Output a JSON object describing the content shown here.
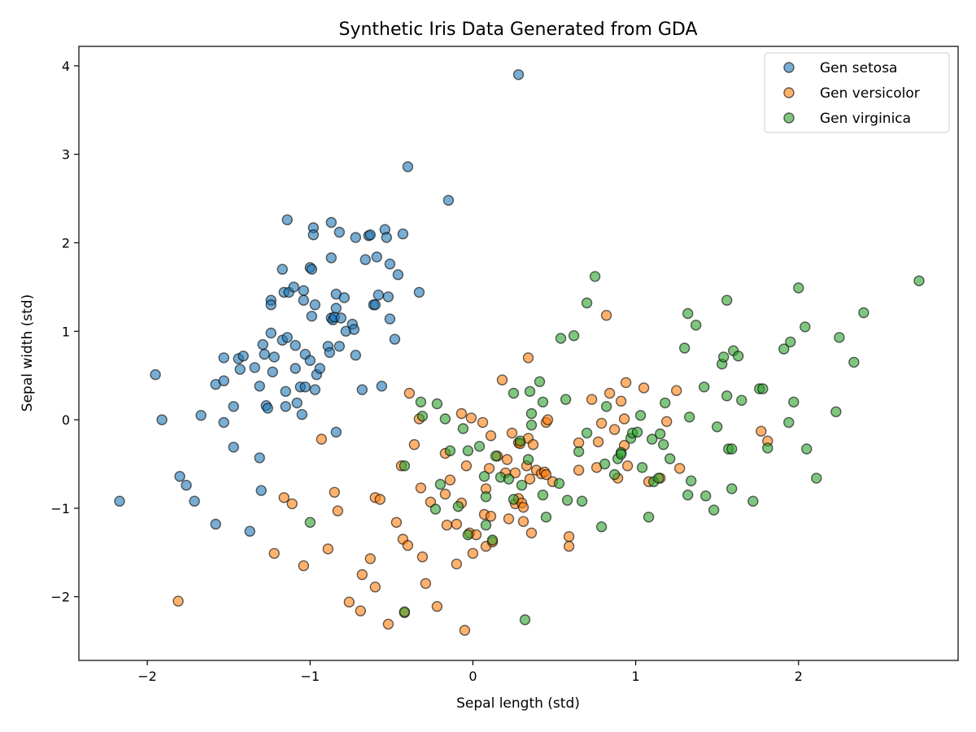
{
  "chart_data": {
    "type": "scatter",
    "title": "Synthetic Iris Data Generated from GDA",
    "xlabel": "Sepal length (std)",
    "ylabel": "Sepal width (std)",
    "xlim": [
      -2.42,
      2.98
    ],
    "ylim": [
      -2.72,
      4.22
    ],
    "xticks": [
      -2,
      -1,
      0,
      1,
      2
    ],
    "xtick_labels": [
      "−2",
      "−1",
      "0",
      "1",
      "2"
    ],
    "yticks": [
      -2,
      -1,
      0,
      1,
      2,
      3,
      4
    ],
    "ytick_labels": [
      "−2",
      "−1",
      "0",
      "1",
      "2",
      "3",
      "4"
    ],
    "grid": false,
    "legend_position": "top-right",
    "series": [
      {
        "name": "Gen setosa",
        "color": "#1f77b4",
        "points": [
          [
            -2.17,
            -0.92
          ],
          [
            -1.95,
            0.51
          ],
          [
            -1.91,
            0.0
          ],
          [
            -1.8,
            -0.64
          ],
          [
            -1.76,
            -0.74
          ],
          [
            -1.71,
            -0.92
          ],
          [
            -1.67,
            0.05
          ],
          [
            -1.58,
            0.4
          ],
          [
            -1.58,
            -1.18
          ],
          [
            -1.53,
            0.7
          ],
          [
            -1.53,
            0.44
          ],
          [
            -1.53,
            -0.03
          ],
          [
            -1.47,
            0.15
          ],
          [
            -1.47,
            -0.31
          ],
          [
            -1.44,
            0.69
          ],
          [
            -1.43,
            0.57
          ],
          [
            -1.41,
            0.72
          ],
          [
            -1.37,
            -1.26
          ],
          [
            -1.34,
            0.59
          ],
          [
            -1.31,
            0.38
          ],
          [
            -1.31,
            -0.43
          ],
          [
            -1.3,
            -0.8
          ],
          [
            -1.29,
            0.85
          ],
          [
            -1.28,
            0.74
          ],
          [
            -1.27,
            0.16
          ],
          [
            -1.26,
            0.13
          ],
          [
            -1.24,
            1.35
          ],
          [
            -1.24,
            1.3
          ],
          [
            -1.24,
            0.98
          ],
          [
            -1.23,
            0.54
          ],
          [
            -1.22,
            0.71
          ],
          [
            -1.17,
            1.7
          ],
          [
            -1.17,
            0.9
          ],
          [
            -1.16,
            1.44
          ],
          [
            -1.15,
            0.32
          ],
          [
            -1.15,
            0.15
          ],
          [
            -1.14,
            2.26
          ],
          [
            -1.14,
            0.93
          ],
          [
            -1.13,
            1.44
          ],
          [
            -1.1,
            1.5
          ],
          [
            -1.09,
            0.84
          ],
          [
            -1.09,
            0.58
          ],
          [
            -1.08,
            0.19
          ],
          [
            -1.06,
            0.37
          ],
          [
            -1.05,
            0.06
          ],
          [
            -1.04,
            1.46
          ],
          [
            -1.04,
            1.35
          ],
          [
            -1.03,
            0.74
          ],
          [
            -1.03,
            0.37
          ],
          [
            -1.0,
            1.72
          ],
          [
            -1.0,
            0.67
          ],
          [
            -0.99,
            1.17
          ],
          [
            -0.99,
            1.7
          ],
          [
            -0.98,
            2.17
          ],
          [
            -0.98,
            2.09
          ],
          [
            -0.97,
            1.3
          ],
          [
            -0.97,
            0.34
          ],
          [
            -0.96,
            0.51
          ],
          [
            -0.94,
            0.58
          ],
          [
            -0.89,
            0.83
          ],
          [
            -0.88,
            0.76
          ],
          [
            -0.87,
            2.23
          ],
          [
            -0.87,
            1.83
          ],
          [
            -0.87,
            1.15
          ],
          [
            -0.86,
            1.13
          ],
          [
            -0.85,
            1.16
          ],
          [
            -0.84,
            1.42
          ],
          [
            -0.84,
            1.26
          ],
          [
            -0.84,
            -0.14
          ],
          [
            -0.82,
            2.12
          ],
          [
            -0.82,
            0.83
          ],
          [
            -0.81,
            1.15
          ],
          [
            -0.79,
            1.38
          ],
          [
            -0.78,
            1.0
          ],
          [
            -0.74,
            1.08
          ],
          [
            -0.73,
            1.02
          ],
          [
            -0.72,
            2.06
          ],
          [
            -0.72,
            0.73
          ],
          [
            -0.68,
            0.34
          ],
          [
            -0.66,
            1.81
          ],
          [
            -0.64,
            2.08
          ],
          [
            -0.63,
            2.09
          ],
          [
            -0.61,
            1.3
          ],
          [
            -0.6,
            1.3
          ],
          [
            -0.59,
            1.84
          ],
          [
            -0.58,
            1.41
          ],
          [
            -0.56,
            0.38
          ],
          [
            -0.54,
            2.15
          ],
          [
            -0.53,
            2.06
          ],
          [
            -0.52,
            1.39
          ],
          [
            -0.51,
            1.76
          ],
          [
            -0.51,
            1.14
          ],
          [
            -0.48,
            0.91
          ],
          [
            -0.46,
            1.64
          ],
          [
            -0.43,
            2.1
          ],
          [
            -0.4,
            2.86
          ],
          [
            -0.33,
            1.44
          ],
          [
            -0.15,
            2.48
          ],
          [
            0.28,
            3.9
          ]
        ]
      },
      {
        "name": "Gen versicolor",
        "color": "#ff7f0e",
        "points": [
          [
            -1.81,
            -2.05
          ],
          [
            -1.22,
            -1.51
          ],
          [
            -1.16,
            -0.88
          ],
          [
            -1.11,
            -0.95
          ],
          [
            -1.04,
            -1.65
          ],
          [
            -0.93,
            -0.22
          ],
          [
            -0.89,
            -1.46
          ],
          [
            -0.85,
            -0.82
          ],
          [
            -0.83,
            -1.03
          ],
          [
            -0.76,
            -2.06
          ],
          [
            -0.69,
            -2.16
          ],
          [
            -0.68,
            -1.75
          ],
          [
            -0.63,
            -1.57
          ],
          [
            -0.6,
            -0.88
          ],
          [
            -0.6,
            -1.89
          ],
          [
            -0.57,
            -0.9
          ],
          [
            -0.52,
            -2.31
          ],
          [
            -0.47,
            -1.16
          ],
          [
            -0.44,
            -0.52
          ],
          [
            -0.43,
            -1.35
          ],
          [
            -0.42,
            -2.18
          ],
          [
            -0.4,
            -1.42
          ],
          [
            -0.39,
            0.3
          ],
          [
            -0.36,
            -0.28
          ],
          [
            -0.33,
            0.01
          ],
          [
            -0.32,
            -0.77
          ],
          [
            -0.31,
            -1.55
          ],
          [
            -0.29,
            -1.85
          ],
          [
            -0.26,
            -0.93
          ],
          [
            -0.22,
            -2.11
          ],
          [
            -0.17,
            -0.38
          ],
          [
            -0.17,
            -0.84
          ],
          [
            -0.16,
            -1.19
          ],
          [
            -0.14,
            -0.68
          ],
          [
            -0.1,
            -1.63
          ],
          [
            -0.1,
            -1.18
          ],
          [
            -0.07,
            0.07
          ],
          [
            -0.07,
            -0.94
          ],
          [
            -0.05,
            -2.38
          ],
          [
            -0.04,
            -0.52
          ],
          [
            -0.02,
            -1.28
          ],
          [
            -0.01,
            0.02
          ],
          [
            0.0,
            -1.51
          ],
          [
            0.02,
            -1.3
          ],
          [
            0.06,
            -0.03
          ],
          [
            0.07,
            -1.07
          ],
          [
            0.08,
            -0.78
          ],
          [
            0.08,
            -1.43
          ],
          [
            0.1,
            -0.55
          ],
          [
            0.11,
            -1.09
          ],
          [
            0.11,
            -0.18
          ],
          [
            0.12,
            -1.38
          ],
          [
            0.15,
            -0.41
          ],
          [
            0.18,
            0.45
          ],
          [
            0.2,
            -0.6
          ],
          [
            0.21,
            -0.45
          ],
          [
            0.22,
            -1.12
          ],
          [
            0.24,
            -0.15
          ],
          [
            0.26,
            -0.6
          ],
          [
            0.26,
            -0.95
          ],
          [
            0.28,
            -0.89
          ],
          [
            0.28,
            -0.26
          ],
          [
            0.29,
            -0.27
          ],
          [
            0.3,
            -0.94
          ],
          [
            0.31,
            -1.15
          ],
          [
            0.31,
            -0.99
          ],
          [
            0.33,
            -0.52
          ],
          [
            0.34,
            0.7
          ],
          [
            0.34,
            -0.21
          ],
          [
            0.35,
            -0.67
          ],
          [
            0.36,
            -1.28
          ],
          [
            0.37,
            -0.28
          ],
          [
            0.39,
            -0.57
          ],
          [
            0.42,
            -0.61
          ],
          [
            0.44,
            -0.59
          ],
          [
            0.45,
            -0.62
          ],
          [
            0.45,
            -0.03
          ],
          [
            0.46,
            0.0
          ],
          [
            0.49,
            -0.7
          ],
          [
            0.59,
            -1.32
          ],
          [
            0.59,
            -1.43
          ],
          [
            0.65,
            -0.26
          ],
          [
            0.65,
            -0.57
          ],
          [
            0.73,
            0.23
          ],
          [
            0.76,
            -0.54
          ],
          [
            0.77,
            -0.25
          ],
          [
            0.79,
            -0.04
          ],
          [
            0.82,
            1.18
          ],
          [
            0.84,
            0.3
          ],
          [
            0.87,
            -0.11
          ],
          [
            0.89,
            -0.66
          ],
          [
            0.91,
            0.21
          ],
          [
            0.93,
            -0.29
          ],
          [
            0.93,
            0.01
          ],
          [
            0.94,
            0.42
          ],
          [
            0.95,
            -0.52
          ],
          [
            1.05,
            0.36
          ],
          [
            1.08,
            -0.7
          ],
          [
            1.15,
            -0.66
          ],
          [
            1.19,
            -0.02
          ],
          [
            1.25,
            0.33
          ],
          [
            1.27,
            -0.55
          ],
          [
            1.77,
            -0.13
          ],
          [
            1.81,
            -0.24
          ]
        ]
      },
      {
        "name": "Gen virginica",
        "color": "#2ca02c",
        "points": [
          [
            -1.0,
            -1.16
          ],
          [
            -0.42,
            -0.52
          ],
          [
            -0.42,
            -2.17
          ],
          [
            -0.32,
            0.2
          ],
          [
            -0.31,
            0.04
          ],
          [
            -0.23,
            -1.01
          ],
          [
            -0.22,
            0.18
          ],
          [
            -0.2,
            -0.73
          ],
          [
            -0.17,
            0.01
          ],
          [
            -0.14,
            -0.35
          ],
          [
            -0.09,
            -0.98
          ],
          [
            -0.06,
            -0.1
          ],
          [
            -0.03,
            -1.3
          ],
          [
            -0.03,
            -0.35
          ],
          [
            0.04,
            -0.3
          ],
          [
            0.07,
            -0.64
          ],
          [
            0.08,
            -0.87
          ],
          [
            0.08,
            -1.19
          ],
          [
            0.12,
            -1.36
          ],
          [
            0.14,
            -0.41
          ],
          [
            0.17,
            -0.65
          ],
          [
            0.22,
            -0.67
          ],
          [
            0.25,
            0.3
          ],
          [
            0.25,
            -0.9
          ],
          [
            0.29,
            -0.24
          ],
          [
            0.3,
            -0.74
          ],
          [
            0.32,
            -2.26
          ],
          [
            0.34,
            -0.45
          ],
          [
            0.35,
            0.32
          ],
          [
            0.36,
            -0.06
          ],
          [
            0.36,
            0.07
          ],
          [
            0.41,
            0.43
          ],
          [
            0.43,
            0.2
          ],
          [
            0.43,
            -0.85
          ],
          [
            0.45,
            -1.1
          ],
          [
            0.53,
            -0.72
          ],
          [
            0.54,
            0.92
          ],
          [
            0.57,
            0.23
          ],
          [
            0.58,
            -0.91
          ],
          [
            0.62,
            0.95
          ],
          [
            0.65,
            -0.36
          ],
          [
            0.67,
            -0.92
          ],
          [
            0.7,
            1.32
          ],
          [
            0.7,
            -0.15
          ],
          [
            0.75,
            1.62
          ],
          [
            0.79,
            -1.21
          ],
          [
            0.81,
            -0.5
          ],
          [
            0.82,
            0.15
          ],
          [
            0.87,
            -0.62
          ],
          [
            0.89,
            -0.44
          ],
          [
            0.91,
            -0.37
          ],
          [
            0.91,
            -0.39
          ],
          [
            0.97,
            -0.21
          ],
          [
            0.98,
            -0.15
          ],
          [
            1.01,
            -0.14
          ],
          [
            1.03,
            0.05
          ],
          [
            1.04,
            -0.54
          ],
          [
            1.08,
            -1.1
          ],
          [
            1.1,
            -0.22
          ],
          [
            1.11,
            -0.7
          ],
          [
            1.14,
            -0.66
          ],
          [
            1.15,
            -0.16
          ],
          [
            1.17,
            -0.28
          ],
          [
            1.18,
            0.19
          ],
          [
            1.21,
            -0.44
          ],
          [
            1.3,
            0.81
          ],
          [
            1.32,
            1.2
          ],
          [
            1.32,
            -0.85
          ],
          [
            1.33,
            0.03
          ],
          [
            1.34,
            -0.69
          ],
          [
            1.37,
            1.07
          ],
          [
            1.42,
            0.37
          ],
          [
            1.43,
            -0.86
          ],
          [
            1.48,
            -1.02
          ],
          [
            1.5,
            -0.08
          ],
          [
            1.53,
            0.63
          ],
          [
            1.54,
            0.71
          ],
          [
            1.56,
            1.35
          ],
          [
            1.56,
            0.27
          ],
          [
            1.57,
            -0.33
          ],
          [
            1.59,
            -0.33
          ],
          [
            1.59,
            -0.78
          ],
          [
            1.6,
            0.78
          ],
          [
            1.63,
            0.72
          ],
          [
            1.65,
            0.22
          ],
          [
            1.72,
            -0.92
          ],
          [
            1.76,
            0.35
          ],
          [
            1.78,
            0.35
          ],
          [
            1.81,
            -0.32
          ],
          [
            1.91,
            0.8
          ],
          [
            1.94,
            -0.03
          ],
          [
            1.95,
            0.88
          ],
          [
            1.97,
            0.2
          ],
          [
            2.0,
            1.49
          ],
          [
            2.04,
            1.05
          ],
          [
            2.05,
            -0.33
          ],
          [
            2.11,
            -0.66
          ],
          [
            2.23,
            0.09
          ],
          [
            2.25,
            0.93
          ],
          [
            2.34,
            0.65
          ],
          [
            2.4,
            1.21
          ],
          [
            2.74,
            1.57
          ]
        ]
      }
    ]
  }
}
